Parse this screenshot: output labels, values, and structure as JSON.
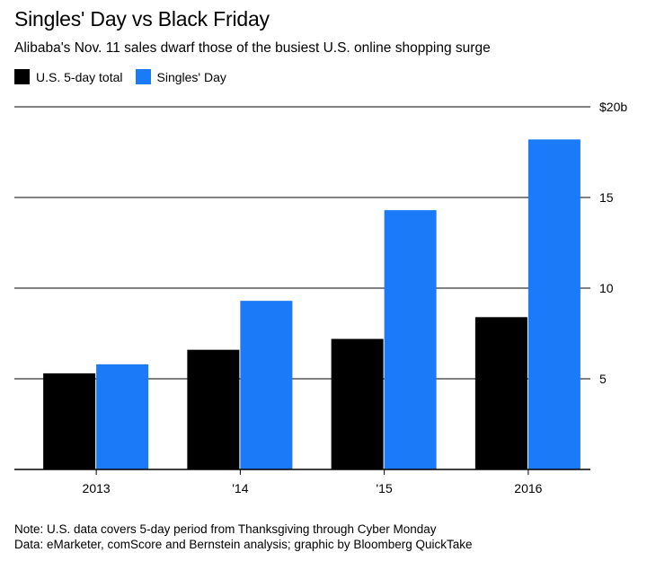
{
  "header": {
    "title": "Singles' Day vs Black Friday",
    "subtitle": "Alibaba's Nov. 11 sales dwarf those of the busiest U.S. online shopping surge"
  },
  "colors": {
    "us": "#000000",
    "singles": "#1a7af8",
    "grid": "#000000"
  },
  "chart_data": {
    "type": "bar",
    "title": "Singles' Day vs Black Friday",
    "subtitle": "Alibaba's Nov. 11 sales dwarf those of the busiest U.S. online shopping surge",
    "categories": [
      "2013",
      "'14",
      "'15",
      "2016"
    ],
    "series": [
      {
        "name": "U.S. 5-day total",
        "values": [
          5.3,
          6.6,
          7.2,
          8.4
        ]
      },
      {
        "name": "Singles' Day",
        "values": [
          5.8,
          9.3,
          14.3,
          18.2
        ]
      }
    ],
    "ylim": [
      0,
      20
    ],
    "yticks": [
      {
        "value": 5,
        "label": "5"
      },
      {
        "value": 10,
        "label": "10"
      },
      {
        "value": 15,
        "label": "15"
      },
      {
        "value": 20,
        "label": "$20b"
      }
    ],
    "xlabel": "",
    "ylabel": "",
    "grid": true,
    "legend_position": "top-left"
  },
  "footer": {
    "note": "Note: U.S. data covers 5-day period from Thanksgiving through Cyber Monday",
    "source": "Data: eMarketer, comScore and Bernstein analysis; graphic by Bloomberg QuickTake"
  }
}
